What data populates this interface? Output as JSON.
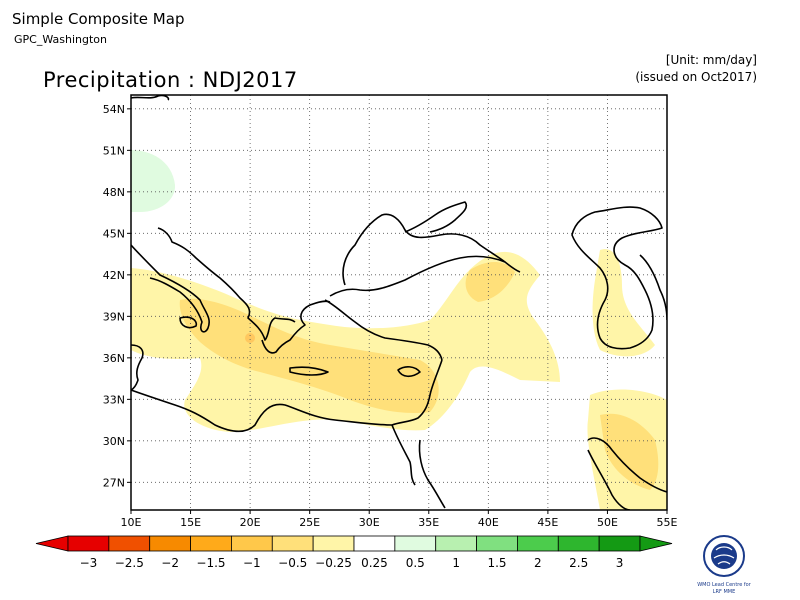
{
  "header": {
    "title": "Simple Composite Map",
    "subtitle": "GPC_Washington",
    "unit": "[Unit: mm/day]",
    "issued": "(issued on Oct2017)",
    "map_title": "Precipitation : NDJ2017"
  },
  "map": {
    "lon_range": [
      10,
      55
    ],
    "lat_range": [
      25,
      55
    ],
    "lat_ticks": [
      {
        "value": 54,
        "label": "54N"
      },
      {
        "value": 51,
        "label": "51N"
      },
      {
        "value": 48,
        "label": "48N"
      },
      {
        "value": 45,
        "label": "45N"
      },
      {
        "value": 42,
        "label": "42N"
      },
      {
        "value": 39,
        "label": "39N"
      },
      {
        "value": 36,
        "label": "36N"
      },
      {
        "value": 33,
        "label": "33N"
      },
      {
        "value": 30,
        "label": "30N"
      },
      {
        "value": 27,
        "label": "27N"
      }
    ],
    "lon_ticks": [
      {
        "value": 10,
        "label": "10E"
      },
      {
        "value": 15,
        "label": "15E"
      },
      {
        "value": 20,
        "label": "20E"
      },
      {
        "value": 25,
        "label": "25E"
      },
      {
        "value": 30,
        "label": "30E"
      },
      {
        "value": 35,
        "label": "35E"
      },
      {
        "value": 40,
        "label": "40E"
      },
      {
        "value": 45,
        "label": "45E"
      },
      {
        "value": 50,
        "label": "50E"
      },
      {
        "value": 55,
        "label": "55E"
      }
    ],
    "grid": "dotted",
    "colors": {
      "light_yellow": "#fff5a8",
      "yellow": "#ffe07a",
      "orange": "#ffc860",
      "light_green": "#e0fbe0",
      "coast": "#000000"
    }
  },
  "colorbar": {
    "labels": [
      "−3",
      "−2.5",
      "−2",
      "−1.5",
      "−1",
      "−0.5",
      "−0.25",
      "0.25",
      "0.5",
      "1",
      "1.5",
      "2",
      "2.5",
      "3"
    ],
    "colors": [
      "#e60000",
      "#f05000",
      "#f78a00",
      "#ffaa1a",
      "#ffc84a",
      "#ffe07a",
      "#fff5a8",
      "#ffffff",
      "#e0fbe0",
      "#b8f0b0",
      "#80e080",
      "#4ccc4c",
      "#2eb62e",
      "#149a14"
    ]
  },
  "logo": {
    "line1": "WMO Lead Centre for",
    "line2": "LRF MME"
  }
}
